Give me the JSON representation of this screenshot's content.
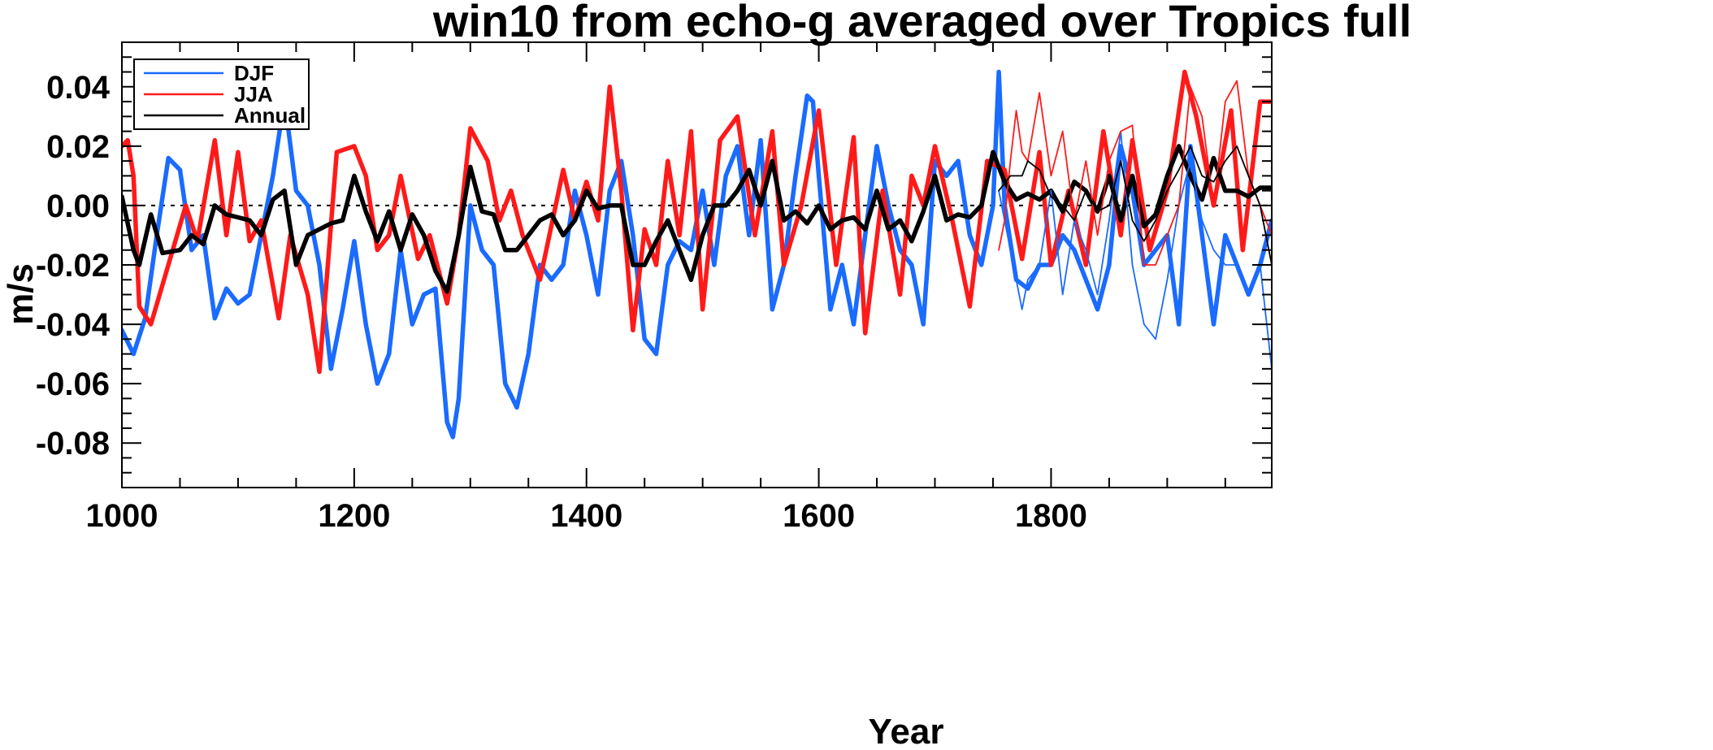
{
  "chart_data": {
    "type": "line",
    "title": "win10 from echo-g averaged over Tropics full",
    "xlabel": "Year",
    "ylabel": "m/s",
    "xlim": [
      1000,
      1990
    ],
    "ylim": [
      -0.095,
      0.055
    ],
    "x_ticks": [
      1000,
      1200,
      1400,
      1600,
      1800
    ],
    "x_tick_labels": [
      "1000",
      "1200",
      "1400",
      "1600",
      "1800"
    ],
    "y_ticks": [
      -0.08,
      -0.06,
      -0.04,
      -0.02,
      0.0,
      0.02,
      0.04
    ],
    "y_tick_labels": [
      "-0.08",
      "-0.06",
      "-0.04",
      "-0.02",
      "0.00",
      "0.02",
      "0.04"
    ],
    "zero_line": true,
    "legend": {
      "placement": "top-left",
      "entries": [
        {
          "label": "DJF",
          "color": "#1a6bff"
        },
        {
          "label": "JJA",
          "color": "#ff1a1a"
        },
        {
          "label": "Annual",
          "color": "#000000"
        }
      ]
    },
    "series": [
      {
        "name": "DJF",
        "color": "#1a6bff",
        "style": "thick",
        "x": [
          1000,
          1010,
          1020,
          1030,
          1040,
          1050,
          1060,
          1070,
          1080,
          1090,
          1100,
          1110,
          1120,
          1130,
          1140,
          1150,
          1160,
          1170,
          1180,
          1190,
          1200,
          1210,
          1220,
          1230,
          1240,
          1250,
          1260,
          1270,
          1280,
          1285,
          1290,
          1300,
          1310,
          1320,
          1330,
          1340,
          1350,
          1360,
          1370,
          1380,
          1390,
          1400,
          1410,
          1420,
          1430,
          1440,
          1450,
          1460,
          1470,
          1480,
          1490,
          1500,
          1510,
          1520,
          1530,
          1540,
          1550,
          1560,
          1570,
          1580,
          1590,
          1595,
          1600,
          1610,
          1620,
          1630,
          1640,
          1650,
          1660,
          1670,
          1680,
          1690,
          1700,
          1710,
          1720,
          1730,
          1740,
          1750,
          1755,
          1760,
          1770,
          1780,
          1790,
          1800,
          1810,
          1820,
          1830,
          1840,
          1850,
          1860,
          1870,
          1880,
          1890,
          1900,
          1910,
          1920,
          1930,
          1940,
          1950,
          1960,
          1970,
          1980,
          1990
        ],
        "values": [
          -0.042,
          -0.05,
          -0.038,
          -0.01,
          0.016,
          0.012,
          -0.015,
          -0.01,
          -0.038,
          -0.028,
          -0.033,
          -0.03,
          -0.01,
          0.01,
          0.036,
          0.005,
          0.0,
          -0.02,
          -0.055,
          -0.035,
          -0.012,
          -0.04,
          -0.06,
          -0.05,
          -0.015,
          -0.04,
          -0.03,
          -0.028,
          -0.073,
          -0.078,
          -0.065,
          0.0,
          -0.015,
          -0.02,
          -0.06,
          -0.068,
          -0.05,
          -0.02,
          -0.025,
          -0.02,
          0.005,
          -0.01,
          -0.03,
          0.005,
          0.015,
          -0.01,
          -0.045,
          -0.05,
          -0.02,
          -0.012,
          -0.015,
          0.005,
          -0.02,
          0.01,
          0.02,
          -0.01,
          0.022,
          -0.035,
          -0.02,
          0.01,
          0.037,
          0.035,
          0.01,
          -0.035,
          -0.02,
          -0.04,
          -0.01,
          0.02,
          0.0,
          -0.015,
          -0.02,
          -0.04,
          0.015,
          0.01,
          0.015,
          -0.01,
          -0.02,
          0.0,
          0.045,
          0.0,
          -0.025,
          -0.028,
          -0.02,
          -0.02,
          -0.01,
          -0.015,
          -0.025,
          -0.035,
          -0.02,
          0.02,
          0.005,
          -0.02,
          -0.015,
          -0.01,
          -0.04,
          0.02,
          -0.01,
          -0.04,
          -0.01,
          -0.02,
          -0.03,
          -0.02,
          -0.005
        ]
      },
      {
        "name": "JJA",
        "color": "#ff1a1a",
        "style": "thick",
        "x": [
          1000,
          1005,
          1010,
          1015,
          1025,
          1040,
          1055,
          1065,
          1080,
          1090,
          1100,
          1110,
          1120,
          1135,
          1145,
          1160,
          1170,
          1185,
          1200,
          1210,
          1220,
          1230,
          1240,
          1255,
          1265,
          1280,
          1290,
          1300,
          1315,
          1325,
          1335,
          1345,
          1360,
          1380,
          1390,
          1400,
          1410,
          1420,
          1430,
          1440,
          1450,
          1460,
          1470,
          1480,
          1490,
          1500,
          1515,
          1530,
          1545,
          1560,
          1570,
          1585,
          1600,
          1615,
          1630,
          1640,
          1655,
          1670,
          1680,
          1690,
          1700,
          1715,
          1730,
          1745,
          1760,
          1775,
          1790,
          1800,
          1815,
          1830,
          1845,
          1860,
          1870,
          1885,
          1900,
          1915,
          1925,
          1940,
          1955,
          1965,
          1980,
          1990
        ],
        "values": [
          0.02,
          0.022,
          0.01,
          -0.034,
          -0.04,
          -0.02,
          0.0,
          -0.012,
          0.022,
          -0.01,
          0.018,
          -0.012,
          -0.005,
          -0.038,
          -0.01,
          -0.03,
          -0.056,
          0.018,
          0.02,
          0.01,
          -0.015,
          -0.01,
          0.01,
          -0.018,
          -0.01,
          -0.033,
          -0.01,
          0.026,
          0.015,
          -0.005,
          0.005,
          -0.01,
          -0.025,
          0.012,
          -0.005,
          0.008,
          -0.005,
          0.04,
          0.005,
          -0.042,
          -0.008,
          -0.02,
          0.015,
          -0.01,
          0.025,
          -0.035,
          0.022,
          0.03,
          -0.01,
          0.025,
          -0.02,
          0.0,
          0.032,
          -0.02,
          0.023,
          -0.043,
          0.005,
          -0.03,
          0.01,
          0.0,
          0.02,
          -0.005,
          -0.034,
          0.015,
          0.012,
          -0.018,
          0.018,
          -0.02,
          0.005,
          -0.02,
          0.025,
          -0.01,
          0.022,
          -0.015,
          0.005,
          0.045,
          0.03,
          0.0,
          0.032,
          -0.015,
          0.035,
          0.035
        ]
      },
      {
        "name": "Annual",
        "color": "#000000",
        "style": "thick",
        "x": [
          1000,
          1010,
          1015,
          1025,
          1035,
          1050,
          1060,
          1070,
          1080,
          1090,
          1100,
          1110,
          1120,
          1130,
          1140,
          1150,
          1160,
          1170,
          1180,
          1190,
          1200,
          1210,
          1220,
          1230,
          1240,
          1250,
          1260,
          1270,
          1280,
          1290,
          1300,
          1310,
          1320,
          1330,
          1340,
          1350,
          1360,
          1370,
          1380,
          1390,
          1400,
          1410,
          1420,
          1430,
          1440,
          1450,
          1460,
          1470,
          1480,
          1490,
          1500,
          1510,
          1520,
          1530,
          1540,
          1550,
          1560,
          1570,
          1580,
          1590,
          1600,
          1610,
          1620,
          1630,
          1640,
          1650,
          1660,
          1670,
          1680,
          1690,
          1700,
          1710,
          1720,
          1730,
          1740,
          1750,
          1760,
          1770,
          1780,
          1790,
          1800,
          1810,
          1820,
          1830,
          1840,
          1850,
          1860,
          1870,
          1880,
          1890,
          1900,
          1910,
          1920,
          1930,
          1940,
          1950,
          1960,
          1970,
          1980,
          1990
        ],
        "values": [
          0.003,
          -0.015,
          -0.02,
          -0.003,
          -0.016,
          -0.015,
          -0.01,
          -0.013,
          0.0,
          -0.003,
          -0.004,
          -0.005,
          -0.01,
          0.002,
          0.005,
          -0.02,
          -0.01,
          -0.008,
          -0.006,
          -0.005,
          0.01,
          -0.002,
          -0.012,
          -0.002,
          -0.015,
          -0.003,
          -0.01,
          -0.022,
          -0.029,
          -0.01,
          0.013,
          -0.002,
          -0.003,
          -0.015,
          -0.015,
          -0.01,
          -0.005,
          -0.003,
          -0.01,
          -0.005,
          0.005,
          -0.001,
          0.0,
          0.0,
          -0.02,
          -0.02,
          -0.012,
          -0.005,
          -0.015,
          -0.025,
          -0.01,
          0.0,
          0.0,
          0.005,
          0.012,
          0.0,
          0.015,
          -0.005,
          -0.002,
          -0.006,
          0.0,
          -0.008,
          -0.005,
          -0.004,
          -0.008,
          0.005,
          -0.008,
          -0.005,
          -0.012,
          -0.002,
          0.01,
          -0.005,
          -0.003,
          -0.004,
          0.0,
          0.018,
          0.008,
          0.002,
          0.004,
          0.002,
          0.005,
          -0.002,
          0.008,
          0.005,
          -0.002,
          0.01,
          -0.005,
          0.01,
          -0.007,
          -0.003,
          0.01,
          0.02,
          0.01,
          0.002,
          0.016,
          0.005,
          0.005,
          0.003,
          0.006,
          0.006
        ]
      },
      {
        "name": "DJF (thin)",
        "color": "#1a6bff",
        "style": "thin",
        "x": [
          1755,
          1765,
          1775,
          1780,
          1790,
          1800,
          1810,
          1820,
          1830,
          1840,
          1850,
          1860,
          1870,
          1880,
          1890,
          1900,
          1910,
          1920,
          1930,
          1940,
          1950,
          1960,
          1970,
          1980,
          1990
        ],
        "values": [
          0.005,
          -0.015,
          -0.035,
          -0.025,
          -0.02,
          0.005,
          -0.03,
          -0.005,
          -0.015,
          -0.03,
          -0.005,
          0.025,
          -0.02,
          -0.04,
          -0.045,
          -0.025,
          0.0,
          0.015,
          -0.005,
          -0.015,
          -0.02,
          -0.02,
          -0.03,
          -0.02,
          -0.055
        ]
      },
      {
        "name": "JJA (thin)",
        "color": "#ff1a1a",
        "style": "thin",
        "x": [
          1755,
          1760,
          1765,
          1770,
          1775,
          1780,
          1790,
          1800,
          1810,
          1820,
          1830,
          1840,
          1850,
          1860,
          1870,
          1880,
          1890,
          1900,
          1910,
          1920,
          1930,
          1940,
          1950,
          1960,
          1970,
          1980,
          1990
        ],
        "values": [
          -0.015,
          -0.005,
          0.015,
          0.032,
          0.018,
          0.015,
          0.038,
          0.01,
          0.025,
          -0.005,
          0.015,
          -0.01,
          0.015,
          0.025,
          0.027,
          -0.02,
          -0.02,
          -0.01,
          0.0,
          0.04,
          0.03,
          0.0,
          0.035,
          0.042,
          0.01,
          0.0,
          -0.01
        ]
      },
      {
        "name": "Annual (thin)",
        "color": "#000000",
        "style": "thin",
        "x": [
          1755,
          1765,
          1775,
          1780,
          1790,
          1800,
          1810,
          1820,
          1830,
          1840,
          1850,
          1860,
          1870,
          1880,
          1890,
          1900,
          1910,
          1920,
          1930,
          1940,
          1950,
          1960,
          1970,
          1980,
          1990
        ],
        "values": [
          0.005,
          0.01,
          0.01,
          0.015,
          0.012,
          0.003,
          0.0,
          -0.005,
          0.005,
          -0.002,
          0.0,
          0.015,
          -0.005,
          -0.012,
          -0.005,
          0.005,
          0.012,
          0.02,
          0.01,
          0.008,
          0.015,
          0.02,
          0.01,
          0.0,
          -0.02
        ]
      }
    ]
  }
}
